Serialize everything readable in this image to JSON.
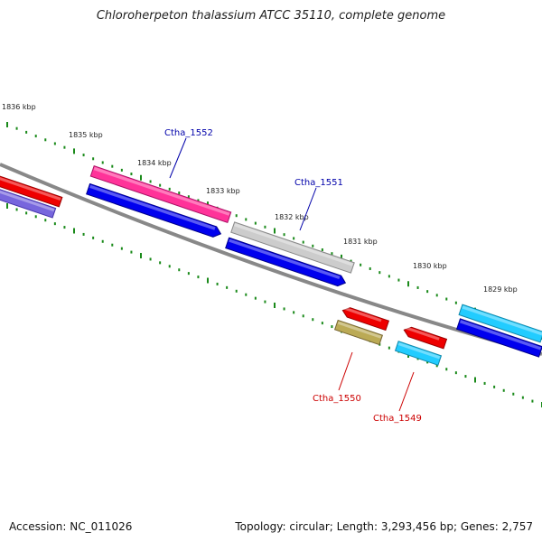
{
  "title": "Chloroherpeton thalassium ATCC 35110, complete genome",
  "footer": {
    "accession": "Accession: NC_011026",
    "summary": "Topology: circular; Length: 3,293,456 bp; Genes: 2,757"
  },
  "colors": {
    "backbone": "#888888",
    "ticks": "#1a8a1a",
    "label_top": "#0000aa",
    "label_bottom": "#cc0000"
  },
  "scale": {
    "labels": [
      "1836 kbp",
      "1835 kbp",
      "1834 kbp",
      "1833 kbp",
      "1832 kbp",
      "1831 kbp",
      "1830 kbp",
      "1829 kbp"
    ]
  },
  "gene_labels": [
    {
      "text": "Ctha_1552",
      "side": "top"
    },
    {
      "text": "Ctha_1551",
      "side": "top"
    },
    {
      "text": "Ctha_1550",
      "side": "bottom"
    },
    {
      "text": "Ctha_1549",
      "side": "bottom"
    }
  ]
}
